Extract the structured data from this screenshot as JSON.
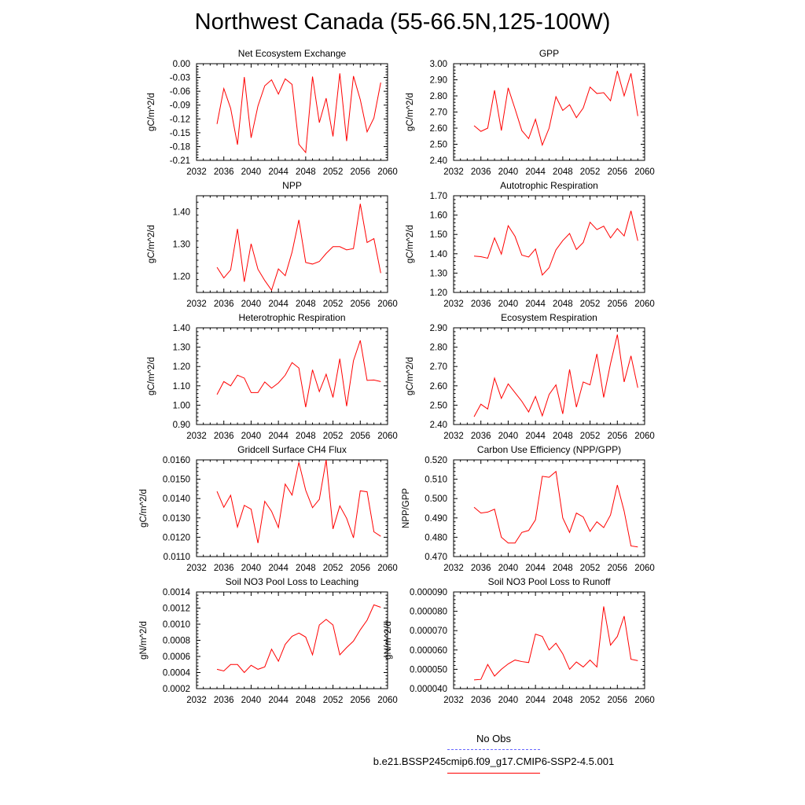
{
  "title": "Northwest Canada (55-66.5N,125-100W)",
  "legend": {
    "entries": [
      {
        "label": "No Obs",
        "color": "#6666ff",
        "style": "dashed"
      },
      {
        "label": "b.e21.BSSP245cmip6.f09_g17.CMIP6-SSP2-4.5.001",
        "color": "#ff0000",
        "style": "solid"
      }
    ]
  },
  "chart_data": [
    {
      "type": "line",
      "title": "Net Ecosystem Exchange",
      "ylabel": "gC/m^2/d",
      "xlim": [
        2032,
        2060
      ],
      "xticks": [
        "2032",
        "2036",
        "2040",
        "2044",
        "2048",
        "2052",
        "2056",
        "2060"
      ],
      "ylim": [
        -0.21,
        0.0
      ],
      "yticks": [
        "0.00",
        "-0.03",
        "-0.06",
        "-0.09",
        "-0.12",
        "-0.15",
        "-0.18",
        "-0.21"
      ],
      "series": [
        {
          "color": "#ff0000",
          "x": [
            2035,
            2036,
            2037,
            2038,
            2039,
            2040,
            2041,
            2042,
            2043,
            2044,
            2045,
            2046,
            2047,
            2048,
            2049,
            2050,
            2051,
            2052,
            2053,
            2054,
            2055,
            2056,
            2057,
            2058,
            2059
          ],
          "y": [
            -0.131,
            -0.054,
            -0.097,
            -0.176,
            -0.029,
            -0.161,
            -0.092,
            -0.048,
            -0.035,
            -0.066,
            -0.033,
            -0.045,
            -0.175,
            -0.193,
            -0.028,
            -0.128,
            -0.075,
            -0.158,
            -0.021,
            -0.168,
            -0.027,
            -0.078,
            -0.148,
            -0.118,
            -0.041
          ]
        }
      ]
    },
    {
      "type": "line",
      "title": "GPP",
      "ylabel": "gC/m^2/d",
      "xlim": [
        2032,
        2060
      ],
      "xticks": [
        "2032",
        "2036",
        "2040",
        "2044",
        "2048",
        "2052",
        "2056",
        "2060"
      ],
      "ylim": [
        2.4,
        3.0
      ],
      "yticks": [
        "3.00",
        "2.90",
        "2.80",
        "2.70",
        "2.60",
        "2.50",
        "2.40"
      ],
      "series": [
        {
          "color": "#ff0000",
          "x": [
            2035,
            2036,
            2037,
            2038,
            2039,
            2040,
            2041,
            2042,
            2043,
            2044,
            2045,
            2046,
            2047,
            2048,
            2049,
            2050,
            2051,
            2052,
            2053,
            2054,
            2055,
            2056,
            2057,
            2058,
            2059
          ],
          "y": [
            2.615,
            2.58,
            2.6,
            2.835,
            2.585,
            2.85,
            2.72,
            2.585,
            2.535,
            2.655,
            2.495,
            2.6,
            2.795,
            2.71,
            2.745,
            2.665,
            2.725,
            2.855,
            2.815,
            2.82,
            2.77,
            2.955,
            2.8,
            2.94,
            2.675
          ]
        }
      ]
    },
    {
      "type": "line",
      "title": "NPP",
      "ylabel": "gC/m^2/d",
      "xlim": [
        2032,
        2060
      ],
      "xticks": [
        "2032",
        "2036",
        "2040",
        "2044",
        "2048",
        "2052",
        "2056",
        "2060"
      ],
      "ylim": [
        1.15,
        1.45
      ],
      "yticks": [
        "1.40",
        "1.30",
        "1.20"
      ],
      "series": [
        {
          "color": "#ff0000",
          "x": [
            2035,
            2036,
            2037,
            2038,
            2039,
            2040,
            2041,
            2042,
            2043,
            2044,
            2045,
            2046,
            2047,
            2048,
            2049,
            2050,
            2051,
            2052,
            2053,
            2054,
            2055,
            2056,
            2057,
            2058,
            2059
          ],
          "y": [
            1.228,
            1.195,
            1.22,
            1.347,
            1.183,
            1.301,
            1.222,
            1.187,
            1.157,
            1.223,
            1.202,
            1.275,
            1.375,
            1.243,
            1.238,
            1.246,
            1.271,
            1.292,
            1.292,
            1.282,
            1.286,
            1.425,
            1.305,
            1.317,
            1.21
          ]
        }
      ]
    },
    {
      "type": "line",
      "title": "Autotrophic Respiration",
      "ylabel": "gC/m^2/d",
      "xlim": [
        2032,
        2060
      ],
      "xticks": [
        "2032",
        "2036",
        "2040",
        "2044",
        "2048",
        "2052",
        "2056",
        "2060"
      ],
      "ylim": [
        1.2,
        1.7
      ],
      "yticks": [
        "1.70",
        "1.60",
        "1.50",
        "1.40",
        "1.30",
        "1.20"
      ],
      "series": [
        {
          "color": "#ff0000",
          "x": [
            2035,
            2036,
            2037,
            2038,
            2039,
            2040,
            2041,
            2042,
            2043,
            2044,
            2045,
            2046,
            2047,
            2048,
            2049,
            2050,
            2051,
            2052,
            2053,
            2054,
            2055,
            2056,
            2057,
            2058,
            2059
          ],
          "y": [
            1.388,
            1.385,
            1.377,
            1.482,
            1.398,
            1.545,
            1.49,
            1.393,
            1.383,
            1.425,
            1.29,
            1.328,
            1.42,
            1.468,
            1.505,
            1.422,
            1.458,
            1.563,
            1.525,
            1.543,
            1.482,
            1.53,
            1.492,
            1.622,
            1.467
          ]
        }
      ]
    },
    {
      "type": "line",
      "title": "Heterotrophic Respiration",
      "ylabel": "gC/m^2/d",
      "xlim": [
        2032,
        2060
      ],
      "xticks": [
        "2032",
        "2036",
        "2040",
        "2044",
        "2048",
        "2052",
        "2056",
        "2060"
      ],
      "ylim": [
        0.9,
        1.4
      ],
      "yticks": [
        "1.40",
        "1.30",
        "1.20",
        "1.10",
        "1.00",
        "0.90"
      ],
      "series": [
        {
          "color": "#ff0000",
          "x": [
            2035,
            2036,
            2037,
            2038,
            2039,
            2040,
            2041,
            2042,
            2043,
            2044,
            2045,
            2046,
            2047,
            2048,
            2049,
            2050,
            2051,
            2052,
            2053,
            2054,
            2055,
            2056,
            2057,
            2058,
            2059
          ],
          "y": [
            1.055,
            1.122,
            1.1,
            1.155,
            1.14,
            1.065,
            1.065,
            1.12,
            1.088,
            1.115,
            1.155,
            1.22,
            1.192,
            0.99,
            1.183,
            1.07,
            1.16,
            1.04,
            1.24,
            0.995,
            1.23,
            1.335,
            1.128,
            1.13,
            1.122
          ]
        }
      ]
    },
    {
      "type": "line",
      "title": "Ecosystem Respiration",
      "ylabel": "gC/m^2/d",
      "xlim": [
        2032,
        2060
      ],
      "xticks": [
        "2032",
        "2036",
        "2040",
        "2044",
        "2048",
        "2052",
        "2056",
        "2060"
      ],
      "ylim": [
        2.4,
        2.9
      ],
      "yticks": [
        "2.90",
        "2.80",
        "2.70",
        "2.60",
        "2.50",
        "2.40"
      ],
      "series": [
        {
          "color": "#ff0000",
          "x": [
            2035,
            2036,
            2037,
            2038,
            2039,
            2040,
            2041,
            2042,
            2043,
            2044,
            2045,
            2046,
            2047,
            2048,
            2049,
            2050,
            2051,
            2052,
            2053,
            2054,
            2055,
            2056,
            2057,
            2058,
            2059
          ],
          "y": [
            2.44,
            2.505,
            2.48,
            2.64,
            2.535,
            2.61,
            2.565,
            2.52,
            2.465,
            2.545,
            2.445,
            2.555,
            2.605,
            2.455,
            2.685,
            2.49,
            2.62,
            2.605,
            2.765,
            2.54,
            2.715,
            2.865,
            2.62,
            2.755,
            2.59
          ]
        }
      ]
    },
    {
      "type": "line",
      "title": "Gridcell Surface CH4 Flux",
      "ylabel": "gC/m^2/d",
      "xlim": [
        2032,
        2060
      ],
      "xticks": [
        "2032",
        "2036",
        "2040",
        "2044",
        "2048",
        "2052",
        "2056",
        "2060"
      ],
      "ylim": [
        0.011,
        0.016
      ],
      "yticks": [
        "0.0160",
        "0.0150",
        "0.0140",
        "0.0130",
        "0.0120",
        "0.0110"
      ],
      "series": [
        {
          "color": "#ff0000",
          "x": [
            2035,
            2036,
            2037,
            2038,
            2039,
            2040,
            2041,
            2042,
            2043,
            2044,
            2045,
            2046,
            2047,
            2048,
            2049,
            2050,
            2051,
            2052,
            2053,
            2054,
            2055,
            2056,
            2057,
            2058,
            2059
          ],
          "y": [
            0.01437,
            0.01355,
            0.01417,
            0.01253,
            0.01365,
            0.01345,
            0.0117,
            0.01386,
            0.01334,
            0.0125,
            0.01475,
            0.01418,
            0.01587,
            0.01443,
            0.01353,
            0.01396,
            0.016,
            0.01243,
            0.01362,
            0.01298,
            0.01197,
            0.0144,
            0.01435,
            0.01228,
            0.01205
          ]
        }
      ]
    },
    {
      "type": "line",
      "title": "Carbon Use Efficiency (NPP/GPP)",
      "ylabel": "NPP/GPP",
      "xlim": [
        2032,
        2060
      ],
      "xticks": [
        "2032",
        "2036",
        "2040",
        "2044",
        "2048",
        "2052",
        "2056",
        "2060"
      ],
      "ylim": [
        0.47,
        0.52
      ],
      "yticks": [
        "0.520",
        "0.510",
        "0.500",
        "0.490",
        "0.480",
        "0.470"
      ],
      "series": [
        {
          "color": "#ff0000",
          "x": [
            2035,
            2036,
            2037,
            2038,
            2039,
            2040,
            2041,
            2042,
            2043,
            2044,
            2045,
            2046,
            2047,
            2048,
            2049,
            2050,
            2051,
            2052,
            2053,
            2054,
            2055,
            2056,
            2057,
            2058,
            2059
          ],
          "y": [
            0.4955,
            0.4925,
            0.493,
            0.4945,
            0.48,
            0.477,
            0.477,
            0.4825,
            0.4835,
            0.489,
            0.5115,
            0.511,
            0.514,
            0.49,
            0.4825,
            0.4925,
            0.4905,
            0.483,
            0.488,
            0.485,
            0.4915,
            0.507,
            0.4935,
            0.4755,
            0.475
          ]
        }
      ]
    },
    {
      "type": "line",
      "title": "Soil NO3 Pool Loss to Leaching",
      "ylabel": "gN/m^2/d",
      "xlim": [
        2032,
        2060
      ],
      "xticks": [
        "2032",
        "2036",
        "2040",
        "2044",
        "2048",
        "2052",
        "2056",
        "2060"
      ],
      "ylim": [
        0.0002,
        0.0014
      ],
      "yticks": [
        "0.0014",
        "0.0012",
        "0.0010",
        "0.0008",
        "0.0006",
        "0.0004",
        "0.0002"
      ],
      "series": [
        {
          "color": "#ff0000",
          "x": [
            2035,
            2036,
            2037,
            2038,
            2039,
            2040,
            2041,
            2042,
            2043,
            2044,
            2045,
            2046,
            2047,
            2048,
            2049,
            2050,
            2051,
            2052,
            2053,
            2054,
            2055,
            2056,
            2057,
            2058,
            2059
          ],
          "y": [
            0.00044,
            0.00042,
            0.0005,
            0.0005,
            0.0004,
            0.00049,
            0.00044,
            0.00047,
            0.00069,
            0.00054,
            0.00075,
            0.00085,
            0.00089,
            0.00084,
            0.00062,
            0.00099,
            0.00106,
            0.00099,
            0.00062,
            0.00071,
            0.00079,
            0.00093,
            0.00105,
            0.00124,
            0.00121
          ]
        }
      ]
    },
    {
      "type": "line",
      "title": "Soil NO3 Pool Loss to Runoff",
      "ylabel": "gN/m^2/d",
      "xlim": [
        2032,
        2060
      ],
      "xticks": [
        "2032",
        "2036",
        "2040",
        "2044",
        "2048",
        "2052",
        "2056",
        "2060"
      ],
      "ylim": [
        4e-05,
        9e-05
      ],
      "yticks": [
        "0.000090",
        "0.000080",
        "0.000070",
        "0.000060",
        "0.000050",
        "0.000040"
      ],
      "series": [
        {
          "color": "#ff0000",
          "x": [
            2035,
            2036,
            2037,
            2038,
            2039,
            2040,
            2041,
            2042,
            2043,
            2044,
            2045,
            2046,
            2047,
            2048,
            2049,
            2050,
            2051,
            2052,
            2053,
            2054,
            2055,
            2056,
            2057,
            2058,
            2059
          ],
          "y": [
            4.45e-05,
            4.48e-05,
            5.25e-05,
            4.65e-05,
            5e-05,
            5.28e-05,
            5.48e-05,
            5.4e-05,
            5.35e-05,
            6.82e-05,
            6.7e-05,
            6e-05,
            6.35e-05,
            5.8e-05,
            5e-05,
            5.38e-05,
            5.12e-05,
            5.48e-05,
            5.12e-05,
            8.25e-05,
            6.25e-05,
            6.7e-05,
            7.75e-05,
            5.52e-05,
            5.45e-05
          ]
        }
      ]
    }
  ]
}
